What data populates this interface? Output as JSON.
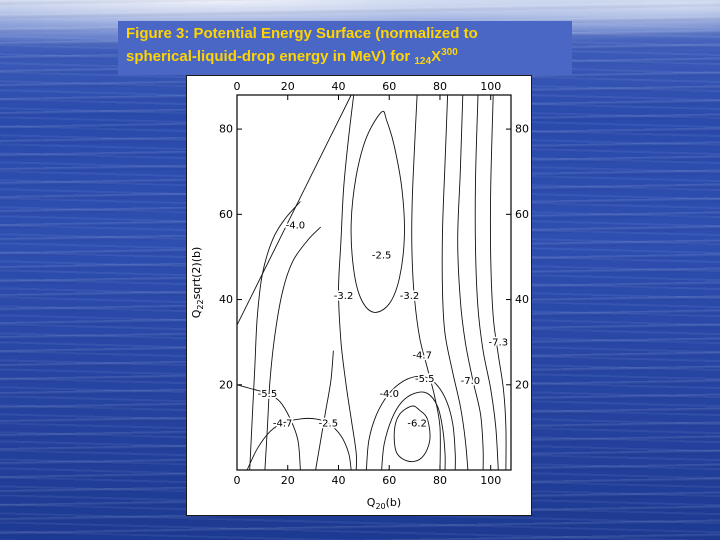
{
  "slide": {
    "title": {
      "line1": "Figure 3: Potential Energy Surface (normalized to",
      "line2_prefix": "spherical-liquid-drop energy in MeV) for ",
      "nuclide_mass": "124",
      "nuclide_symbol": "X",
      "nuclide_superscript": "300"
    },
    "colors": {
      "title_text": "#ffd400",
      "title_bg": "#4a67c6",
      "water_mid": "#2a4aac",
      "water_dark": "#24429e"
    }
  },
  "chart_data": {
    "type": "contour",
    "title": "Potential Energy Surface (normalized to spherical-liquid-drop energy in MeV) for 124X300",
    "xlabel_parts": [
      {
        "t": "Q"
      },
      {
        "t": "20",
        "sub": true
      },
      {
        "t": "(b)"
      }
    ],
    "ylabel_parts": [
      {
        "t": "Q"
      },
      {
        "t": "22",
        "sub": true
      },
      {
        "t": "sqrt(2)(b)"
      }
    ],
    "xlim": [
      0,
      108
    ],
    "ylim": [
      0,
      88
    ],
    "x_ticks": [
      0,
      20,
      40,
      60,
      80,
      100
    ],
    "y_ticks": [
      20,
      40,
      60,
      80
    ],
    "grid": false,
    "legend": "none",
    "labels": [
      {
        "value": "-4.0",
        "x": 23,
        "y": 57.5
      },
      {
        "value": "-2.5",
        "x": 57,
        "y": 50.5
      },
      {
        "value": "-3.2",
        "x": 42,
        "y": 41
      },
      {
        "value": "-3.2",
        "x": 68,
        "y": 41
      },
      {
        "value": "-4.7",
        "x": 73,
        "y": 27
      },
      {
        "value": "-7.3",
        "x": 103,
        "y": 30
      },
      {
        "value": "-5.5",
        "x": 74,
        "y": 21.5
      },
      {
        "value": "-7.0",
        "x": 92,
        "y": 21
      },
      {
        "value": "-5.5",
        "x": 12,
        "y": 18
      },
      {
        "value": "-4.0",
        "x": 60,
        "y": 18
      },
      {
        "value": "-4.7",
        "x": 18,
        "y": 11
      },
      {
        "value": "-2.5",
        "x": 36,
        "y": 11
      },
      {
        "value": "-6.2",
        "x": 71,
        "y": 11
      }
    ],
    "contours": [
      {
        "name": "region-boundary",
        "closed": false,
        "pts": [
          [
            0,
            34
          ],
          [
            15,
            52
          ],
          [
            30,
            70
          ],
          [
            45,
            88
          ]
        ]
      },
      {
        "name": "left-1",
        "closed": false,
        "pts": [
          [
            5,
            0
          ],
          [
            6,
            12
          ],
          [
            7,
            24
          ],
          [
            8,
            36
          ],
          [
            10,
            46
          ],
          [
            14,
            54
          ],
          [
            19,
            59
          ],
          [
            25,
            63
          ]
        ]
      },
      {
        "name": "left-2",
        "closed": false,
        "pts": [
          [
            11,
            0
          ],
          [
            12,
            10
          ],
          [
            13,
            21
          ],
          [
            15,
            32
          ],
          [
            18,
            42
          ],
          [
            22,
            49
          ],
          [
            28,
            54
          ],
          [
            33,
            57
          ]
        ]
      },
      {
        "name": "bl-horiz",
        "closed": false,
        "pts": [
          [
            0,
            20
          ],
          [
            6,
            19
          ],
          [
            12,
            18
          ],
          [
            17,
            16
          ],
          [
            21,
            12
          ],
          [
            24,
            7
          ],
          [
            25,
            0
          ]
        ]
      },
      {
        "name": "bl-arc",
        "closed": false,
        "pts": [
          [
            4,
            0
          ],
          [
            8,
            5
          ],
          [
            13,
            9
          ],
          [
            18,
            11
          ],
          [
            25,
            12
          ],
          [
            31,
            12
          ],
          [
            36,
            11
          ],
          [
            41,
            8
          ],
          [
            44,
            4
          ],
          [
            45,
            0
          ]
        ]
      },
      {
        "name": "mid-low",
        "closed": false,
        "pts": [
          [
            31,
            0
          ],
          [
            33,
            7
          ],
          [
            35,
            14
          ],
          [
            37,
            21
          ],
          [
            38,
            28
          ]
        ]
      },
      {
        "name": "valley-left",
        "closed": false,
        "pts": [
          [
            46,
            88
          ],
          [
            44,
            78
          ],
          [
            42,
            66
          ],
          [
            41,
            54
          ],
          [
            40,
            42
          ],
          [
            41,
            30
          ],
          [
            43,
            20
          ],
          [
            45,
            12
          ],
          [
            47,
            4
          ],
          [
            47,
            0
          ]
        ]
      },
      {
        "name": "central-basin",
        "closed": true,
        "pts": [
          [
            57,
            84
          ],
          [
            51,
            78
          ],
          [
            47,
            69
          ],
          [
            45,
            58
          ],
          [
            46,
            47
          ],
          [
            49,
            40
          ],
          [
            54,
            37
          ],
          [
            60,
            39
          ],
          [
            64,
            45
          ],
          [
            66,
            55
          ],
          [
            65,
            66
          ],
          [
            62,
            76
          ],
          [
            59,
            82
          ]
        ]
      },
      {
        "name": "valley-right",
        "closed": false,
        "pts": [
          [
            71,
            88
          ],
          [
            70,
            76
          ],
          [
            69,
            62
          ],
          [
            69,
            50
          ],
          [
            70,
            40
          ],
          [
            72,
            31
          ],
          [
            75,
            24
          ],
          [
            78,
            17
          ],
          [
            80,
            10
          ],
          [
            80,
            0
          ]
        ]
      },
      {
        "name": "bowl-outer",
        "closed": false,
        "pts": [
          [
            51,
            0
          ],
          [
            52,
            7
          ],
          [
            55,
            13
          ],
          [
            60,
            18
          ],
          [
            66,
            21
          ],
          [
            72,
            22
          ],
          [
            77,
            21
          ],
          [
            82,
            17
          ],
          [
            85,
            11
          ],
          [
            86,
            4
          ],
          [
            86,
            0
          ]
        ]
      },
      {
        "name": "bowl-mid",
        "closed": false,
        "pts": [
          [
            57,
            0
          ],
          [
            58,
            6
          ],
          [
            61,
            12
          ],
          [
            65,
            16
          ],
          [
            70,
            18
          ],
          [
            75,
            18
          ],
          [
            79,
            15
          ],
          [
            81,
            10
          ],
          [
            82,
            4
          ],
          [
            82,
            0
          ]
        ]
      },
      {
        "name": "bowl-inner",
        "closed": true,
        "pts": [
          [
            69,
            15
          ],
          [
            64,
            13
          ],
          [
            62,
            9
          ],
          [
            63,
            4
          ],
          [
            68,
            2
          ],
          [
            73,
            3
          ],
          [
            76,
            7
          ],
          [
            75,
            12
          ],
          [
            72,
            14
          ]
        ]
      },
      {
        "name": "right-1",
        "closed": false,
        "pts": [
          [
            83,
            88
          ],
          [
            82,
            72
          ],
          [
            81,
            56
          ],
          [
            81,
            42
          ],
          [
            82,
            32
          ],
          [
            85,
            23
          ],
          [
            88,
            15
          ],
          [
            90,
            7
          ],
          [
            91,
            0
          ]
        ]
      },
      {
        "name": "right-2",
        "closed": false,
        "pts": [
          [
            89,
            88
          ],
          [
            88,
            70
          ],
          [
            87,
            54
          ],
          [
            88,
            40
          ],
          [
            90,
            30
          ],
          [
            93,
            21
          ],
          [
            96,
            13
          ],
          [
            97,
            5
          ],
          [
            97,
            0
          ]
        ]
      },
      {
        "name": "right-3",
        "closed": false,
        "pts": [
          [
            95,
            88
          ],
          [
            94,
            68
          ],
          [
            94,
            52
          ],
          [
            95,
            38
          ],
          [
            97,
            28
          ],
          [
            100,
            19
          ],
          [
            102,
            10
          ],
          [
            103,
            0
          ]
        ]
      },
      {
        "name": "right-4",
        "closed": false,
        "pts": [
          [
            101,
            88
          ],
          [
            100,
            66
          ],
          [
            100,
            50
          ],
          [
            101,
            36
          ],
          [
            103,
            27
          ],
          [
            105,
            19
          ],
          [
            106,
            10
          ],
          [
            106,
            0
          ]
        ]
      }
    ]
  }
}
